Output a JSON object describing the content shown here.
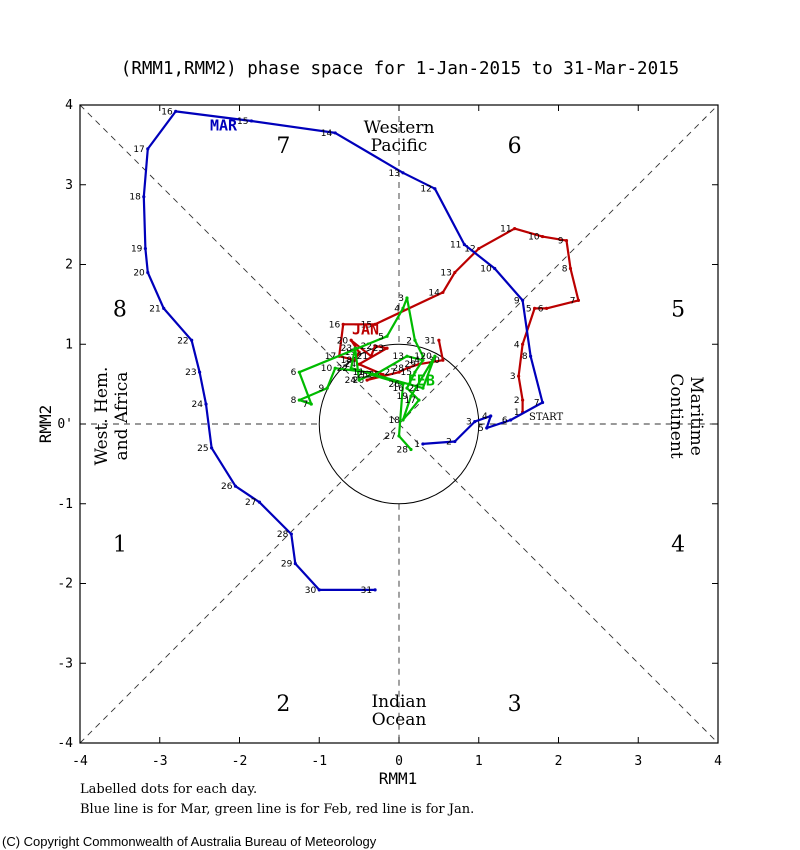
{
  "chart_data": {
    "type": "line",
    "title": "(RMM1,RMM2) phase space for  1-Jan-2015 to 31-Mar-2015",
    "xlabel": "RMM1",
    "ylabel": "RMM2",
    "xlim": [
      -4,
      4
    ],
    "ylim": [
      -4,
      4
    ],
    "x_ticks": [
      "-4",
      "-3",
      "-2",
      "-1",
      "0",
      "1",
      "2",
      "3",
      "4"
    ],
    "y_ticks": [
      "-4",
      "-3",
      "-2",
      "-1",
      "0'",
      "1",
      "2",
      "3",
      "4"
    ],
    "phases": [
      {
        "label": "1",
        "x": -3.5,
        "y": -1.5
      },
      {
        "label": "2",
        "x": -1.45,
        "y": -3.5
      },
      {
        "label": "3",
        "x": 1.45,
        "y": -3.5
      },
      {
        "label": "4",
        "x": 3.5,
        "y": -1.5
      },
      {
        "label": "5",
        "x": 3.5,
        "y": 1.45
      },
      {
        "label": "6",
        "x": 1.45,
        "y": 3.5
      },
      {
        "label": "7",
        "x": -1.45,
        "y": 3.5
      },
      {
        "label": "8",
        "x": -3.5,
        "y": 1.45
      }
    ],
    "regions": [
      {
        "lines": [
          "Western",
          "Pacific"
        ],
        "x": 0,
        "y": 3.6,
        "orient": "horizontal"
      },
      {
        "lines": [
          "Indian",
          "Ocean"
        ],
        "x": 0,
        "y": -3.6,
        "orient": "horizontal"
      },
      {
        "lines": [
          "West. Hem.",
          "and Africa"
        ],
        "x": -3.6,
        "y": 0.1,
        "orient": "left"
      },
      {
        "lines": [
          "Maritime",
          "Continent"
        ],
        "x": 3.6,
        "y": 0.1,
        "orient": "right"
      }
    ],
    "month_labels": [
      {
        "text": "MAR",
        "x": -2.2,
        "y": 3.68,
        "color": "#0000bb"
      },
      {
        "text": "JAN",
        "x": -0.42,
        "y": 1.12,
        "color": "#bb0000"
      },
      {
        "text": "FEB",
        "x": 0.28,
        "y": 0.48,
        "color": "#00bb00"
      }
    ],
    "start_label": {
      "text": "START",
      "x": 1.63,
      "y": 0.05
    },
    "series": [
      {
        "name": "Jan",
        "color": "#bb0000",
        "points": [
          [
            1.55,
            0.15
          ],
          [
            1.55,
            0.3
          ],
          [
            1.5,
            0.6
          ],
          [
            1.55,
            1.0
          ],
          [
            1.7,
            1.45
          ],
          [
            1.85,
            1.45
          ],
          [
            2.25,
            1.55
          ],
          [
            2.15,
            1.95
          ],
          [
            2.1,
            2.3
          ],
          [
            1.8,
            2.35
          ],
          [
            1.45,
            2.45
          ],
          [
            1.0,
            2.2
          ],
          [
            0.7,
            1.9
          ],
          [
            0.55,
            1.65
          ],
          [
            -0.3,
            1.25
          ],
          [
            -0.7,
            1.25
          ],
          [
            -0.75,
            0.85
          ],
          [
            -0.55,
            0.8
          ],
          [
            -0.5,
            0.9
          ],
          [
            -0.6,
            1.05
          ],
          [
            -0.35,
            0.85
          ],
          [
            -0.3,
            0.98
          ],
          [
            -0.15,
            0.95
          ],
          [
            -0.5,
            0.75
          ],
          [
            -0.2,
            0.62
          ],
          [
            -0.4,
            0.55
          ],
          [
            0.0,
            0.65
          ],
          [
            0.1,
            0.7
          ],
          [
            0.25,
            0.75
          ],
          [
            0.55,
            0.8
          ],
          [
            0.5,
            1.05
          ]
        ]
      },
      {
        "name": "Feb",
        "color": "#00bb00",
        "points": [
          [
            0.3,
            0.85
          ],
          [
            0.2,
            1.05
          ],
          [
            0.1,
            1.58
          ],
          [
            0.05,
            1.45
          ],
          [
            -0.15,
            1.1
          ],
          [
            -1.25,
            0.65
          ],
          [
            -1.1,
            0.25
          ],
          [
            -1.25,
            0.3
          ],
          [
            -0.9,
            0.45
          ],
          [
            -0.8,
            0.7
          ],
          [
            -0.4,
            0.65
          ],
          [
            -0.3,
            0.62
          ],
          [
            0.1,
            0.85
          ],
          [
            0.3,
            0.8
          ],
          [
            0.2,
            0.65
          ],
          [
            0.1,
            0.45
          ],
          [
            0.25,
            0.3
          ],
          [
            0.05,
            0.05
          ],
          [
            0.15,
            0.35
          ],
          [
            0.45,
            0.85
          ],
          [
            0.3,
            0.45
          ],
          [
            -0.6,
            0.7
          ],
          [
            -0.55,
            0.95
          ],
          [
            -0.5,
            0.55
          ],
          [
            -0.35,
            0.62
          ],
          [
            0.05,
            0.5
          ],
          [
            0.0,
            -0.15
          ],
          [
            0.15,
            -0.32
          ]
        ]
      },
      {
        "name": "Mar",
        "color": "#0000bb",
        "points": [
          [
            0.3,
            -0.25
          ],
          [
            0.7,
            -0.22
          ],
          [
            0.95,
            0.03
          ],
          [
            1.15,
            0.1
          ],
          [
            1.1,
            -0.05
          ],
          [
            1.4,
            0.05
          ],
          [
            1.8,
            0.27
          ],
          [
            1.65,
            0.85
          ],
          [
            1.55,
            1.55
          ],
          [
            1.2,
            1.95
          ],
          [
            0.82,
            2.25
          ],
          [
            0.45,
            2.95
          ],
          [
            0.05,
            3.15
          ],
          [
            -0.8,
            3.65
          ],
          [
            -1.85,
            3.8
          ],
          [
            -2.8,
            3.92
          ],
          [
            -3.15,
            3.45
          ],
          [
            -3.2,
            2.85
          ],
          [
            -3.18,
            2.2
          ],
          [
            -3.15,
            1.9
          ],
          [
            -2.95,
            1.45
          ],
          [
            -2.6,
            1.05
          ],
          [
            -2.5,
            0.65
          ],
          [
            -2.42,
            0.25
          ],
          [
            -2.35,
            -0.3
          ],
          [
            -2.05,
            -0.78
          ],
          [
            -1.75,
            -0.98
          ],
          [
            -1.35,
            -1.38
          ],
          [
            -1.3,
            -1.75
          ],
          [
            -1.0,
            -2.08
          ],
          [
            -0.3,
            -2.08
          ]
        ]
      }
    ]
  },
  "notes": {
    "line1": "Labelled dots for each day.",
    "line2": "Blue line is for Mar, green line is for Feb, red line is for Jan."
  },
  "copyright": "(C) Copyright Commonwealth of Australia Bureau of Meteorology"
}
